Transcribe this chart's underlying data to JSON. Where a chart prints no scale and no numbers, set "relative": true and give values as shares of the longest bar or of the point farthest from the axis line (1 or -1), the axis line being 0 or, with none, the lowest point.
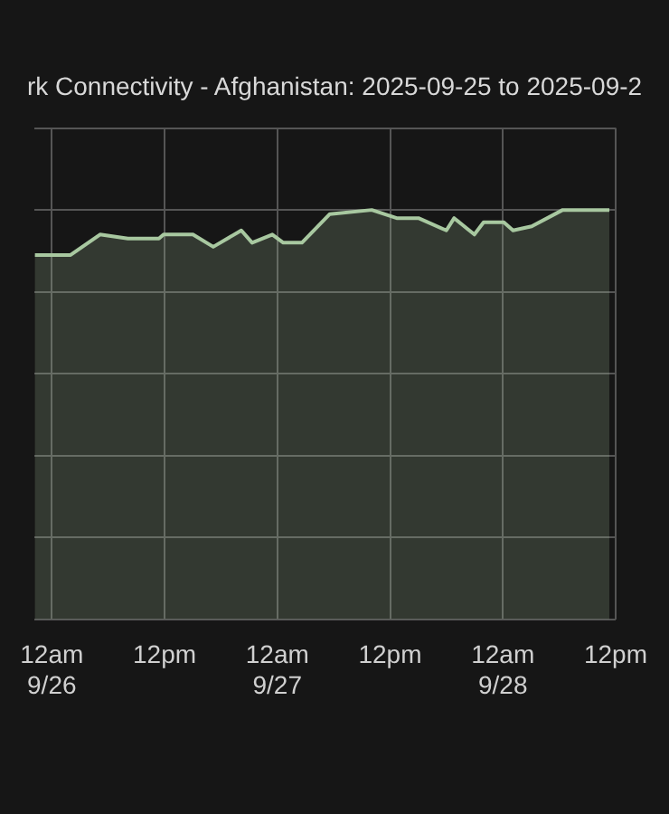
{
  "chart_data": {
    "type": "area",
    "title": "rk Connectivity - Afghanistan: 2025-09-25 to 2025-09-2",
    "relative": true,
    "x": [
      "2025-09-25T22:11",
      "2025-09-26T02:00",
      "2025-09-26T05:08",
      "2025-09-26T08:06",
      "2025-09-26T11:24",
      "2025-09-26T11:54",
      "2025-09-26T15:01",
      "2025-09-26T17:11",
      "2025-09-26T20:10",
      "2025-09-26T21:19",
      "2025-09-26T23:28",
      "2025-09-27T00:38",
      "2025-09-27T02:37",
      "2025-09-27T05:35",
      "2025-09-27T10:03",
      "2025-09-27T12:42",
      "2025-09-27T15:01",
      "2025-09-27T17:59",
      "2025-09-27T18:49",
      "2025-09-27T20:58",
      "2025-09-27T21:57",
      "2025-09-28T00:06",
      "2025-09-28T01:05",
      "2025-09-28T03:04",
      "2025-09-28T06:22",
      "2025-09-28T11:20"
    ],
    "series": [
      {
        "color": "#a8c8a0",
        "values": [
          0.89,
          0.89,
          0.94,
          0.93,
          0.93,
          0.94,
          0.94,
          0.91,
          0.95,
          0.92,
          0.94,
          0.92,
          0.92,
          0.99,
          1.0,
          0.98,
          0.98,
          0.95,
          0.98,
          0.94,
          0.97,
          0.97,
          0.95,
          0.96,
          1.0,
          1.0
        ]
      }
    ],
    "xlim": [
      "2025-09-25T22:11",
      "2025-09-28T12:00"
    ],
    "xticks": [
      {
        "value": "2025-09-26T00:00",
        "label": "12am 9/26"
      },
      {
        "value": "2025-09-26T12:00",
        "label": "12pm"
      },
      {
        "value": "2025-09-27T00:00",
        "label": "12am 9/27"
      },
      {
        "value": "2025-09-27T12:00",
        "label": "12pm"
      },
      {
        "value": "2025-09-28T00:00",
        "label": "12am 9/28"
      },
      {
        "value": "2025-09-28T12:00",
        "label": "12pm"
      }
    ],
    "grid": true
  }
}
